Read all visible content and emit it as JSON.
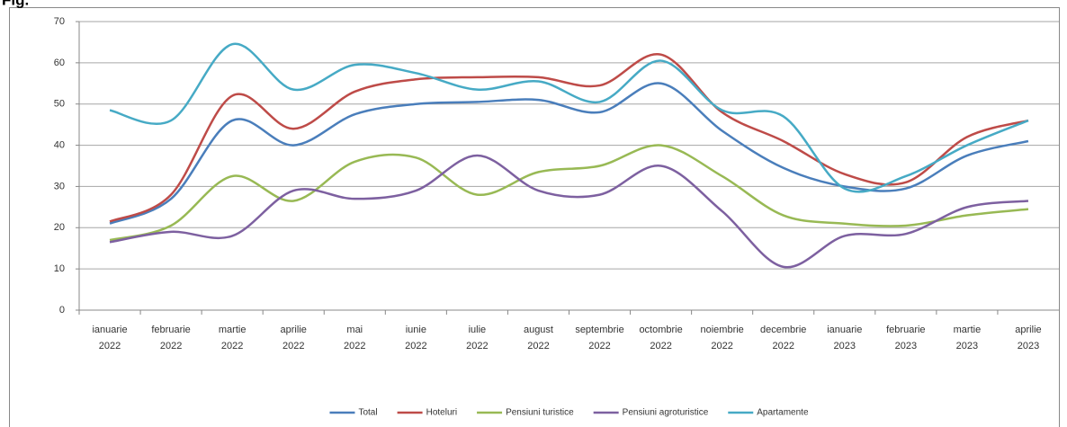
{
  "chart_data": {
    "type": "line",
    "title": "Fig.",
    "categories": [
      "ianuarie 2022",
      "februarie 2022",
      "martie 2022",
      "aprilie 2022",
      "mai 2022",
      "iunie 2022",
      "iulie 2022",
      "august 2022",
      "septembrie 2022",
      "octombrie 2022",
      "noiembrie 2022",
      "decembrie 2022",
      "ianuarie 2023",
      "februarie 2023",
      "martie 2023",
      "aprilie 2023"
    ],
    "series": [
      {
        "name": "Total",
        "color": "#4a7ebb",
        "values": [
          21,
          27,
          46,
          40,
          47.5,
          50,
          50.5,
          51,
          48,
          55,
          43.5,
          34.5,
          30,
          29.5,
          37.5,
          41
        ]
      },
      {
        "name": "Hoteluri",
        "color": "#be4b48",
        "values": [
          21.5,
          28,
          52,
          44,
          53,
          56,
          56.5,
          56.5,
          54.5,
          62,
          48,
          41,
          33,
          31,
          42,
          46
        ]
      },
      {
        "name": "Pensiuni turistice",
        "color": "#98b954",
        "values": [
          17,
          20.5,
          32.5,
          26.5,
          36,
          37,
          28,
          33.5,
          35,
          40,
          32.5,
          23,
          21,
          20.5,
          23,
          24.5
        ]
      },
      {
        "name": "Pensiuni agroturistice",
        "color": "#7d60a0",
        "values": [
          16.5,
          19,
          18,
          29,
          27,
          29,
          37.5,
          29,
          28,
          35,
          24,
          10.5,
          18,
          18.5,
          25,
          26.5
        ]
      },
      {
        "name": "Apartamente",
        "color": "#46aac5",
        "values": [
          48.5,
          46,
          64.5,
          53.5,
          59.5,
          57.5,
          53.5,
          55.5,
          50.5,
          60.5,
          48.5,
          47,
          29.5,
          32.5,
          40,
          46
        ]
      }
    ],
    "ylim": [
      0,
      70
    ],
    "yticks": [
      0,
      10,
      20,
      30,
      40,
      50,
      60,
      70
    ],
    "grid": true,
    "legend": "bottom"
  }
}
